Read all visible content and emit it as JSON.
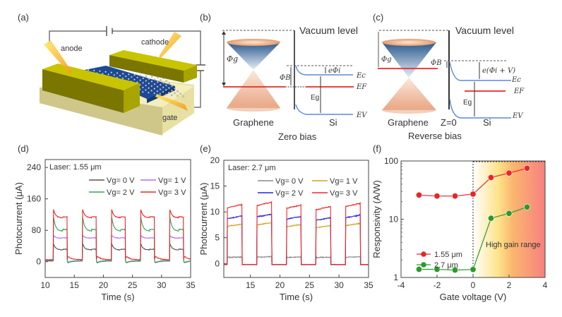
{
  "panels": {
    "a": {
      "label": "(a)",
      "annotations": [
        "anode",
        "cathode",
        "gate"
      ]
    },
    "b": {
      "label": "(b)",
      "vacuum": "Vacuum level",
      "phi_g": "Φg",
      "phi_b": "ΦB",
      "e_phi": "eΦi",
      "ec": "Ec",
      "ef": "EF",
      "ev": "EV",
      "eg": "Eg",
      "graphene": "Graphene",
      "si": "Si",
      "caption": "Zero bias"
    },
    "c": {
      "label": "(c)",
      "vacuum": "Vacuum level",
      "phi_g": "Φg",
      "phi_b": "ΦB",
      "e_phi": "e(Φi + V)",
      "ec": "Ec",
      "ef": "EF",
      "ev": "EV",
      "eg": "Eg",
      "graphene": "Graphene",
      "z0": "Z=0",
      "si": "Si",
      "caption": "Reverse bias"
    },
    "d": {
      "label": "(d)"
    },
    "e": {
      "label": "(e)"
    },
    "f": {
      "label": "(f)",
      "shade_label": "High gain range"
    }
  },
  "colors": {
    "vg0_d": "#555555",
    "vg1_d": "#b76ee8",
    "vg2_d": "#2ea55a",
    "vg3_d": "#e8262a",
    "vg0_e": "#888888",
    "vg1_e": "#d4a020",
    "vg2_e": "#2323e0",
    "vg3_e": "#ee2a2a",
    "red_series": "#e8262a",
    "green_series": "#2a9a2a"
  },
  "chart_data": [
    {
      "type": "line",
      "id": "d",
      "annotation": "Laser: 1.55 μm",
      "xlabel": "Time (s)",
      "ylabel": "Photocurrent (μA)",
      "xlim": [
        10,
        35
      ],
      "ylim": [
        -40,
        260
      ],
      "xticks": [
        10,
        15,
        20,
        25,
        30,
        35
      ],
      "yticks": [
        0,
        80,
        160,
        240
      ],
      "legend_position": "top-right",
      "pulse_on": [
        11.4,
        16.4,
        21.4,
        26.4,
        31.4
      ],
      "pulse_off": [
        13.8,
        18.8,
        23.8,
        28.8,
        33.8
      ],
      "series": [
        {
          "name": "Vg= 0 V",
          "color_key": "vg0_d",
          "peak": 48,
          "plateau": 30,
          "baseline": 2,
          "undershoot": -5
        },
        {
          "name": "Vg= 1 V",
          "color_key": "vg1_d",
          "peak": 68,
          "plateau": 60,
          "baseline": 2,
          "undershoot": -6
        },
        {
          "name": "Vg= 2 V",
          "color_key": "vg2_d",
          "peak": 118,
          "plateau": 78,
          "baseline": 3,
          "undershoot": -8
        },
        {
          "name": "Vg= 3 V",
          "color_key": "vg3_d",
          "peak": 135,
          "plateau": 112,
          "baseline": 5,
          "undershoot": 12
        }
      ]
    },
    {
      "type": "line",
      "id": "e",
      "annotation": "Laser: 2.7 μm",
      "xlabel": "Time (s)",
      "ylabel": "Photocurrent (μA)",
      "xlim": [
        10.5,
        35
      ],
      "ylim": [
        -2.7,
        20
      ],
      "xticks": [
        15,
        20,
        25,
        30,
        35
      ],
      "yticks": [
        0,
        5,
        10,
        15,
        20
      ],
      "legend_position": "top-right",
      "pulse_on": [
        11.1,
        16.1,
        21.1,
        26.1,
        31.1
      ],
      "pulse_off": [
        13.6,
        18.6,
        23.6,
        28.6,
        33.6
      ],
      "series": [
        {
          "name": "Vg= 0 V",
          "color_key": "vg0_e",
          "plateau": 1.2,
          "baseline": -0.2
        },
        {
          "name": "Vg= 1 V",
          "color_key": "vg1_e",
          "plateau": 7.2,
          "baseline": -0.2
        },
        {
          "name": "Vg= 2 V",
          "color_key": "vg2_e",
          "plateau": 8.7,
          "baseline": -0.2
        },
        {
          "name": "Vg= 3 V",
          "color_key": "vg3_e",
          "plateau": 10.8,
          "baseline": -0.2
        }
      ]
    },
    {
      "type": "line",
      "id": "f",
      "xlabel": "Gate voltage (V)",
      "ylabel": "Responsivity (A/W)",
      "xlim": [
        -4,
        4
      ],
      "ylim": [
        1,
        100
      ],
      "yscale": "log",
      "xticks": [
        -4,
        -2,
        0,
        2,
        4
      ],
      "yticks": [
        1,
        10,
        100
      ],
      "legend_position": "bottom-left",
      "x": [
        -3,
        -2,
        -1,
        0,
        1,
        2,
        3
      ],
      "series": [
        {
          "name": "1.55 μm",
          "color_key": "red_series",
          "values": [
            26,
            25,
            25,
            27,
            52,
            62,
            75
          ]
        },
        {
          "name": "2.7 μm",
          "color_key": "green_series",
          "values": [
            1.38,
            1.38,
            1.34,
            1.37,
            10.4,
            12.6,
            16.2
          ]
        }
      ],
      "shaded_region": {
        "x": [
          0,
          4
        ],
        "label": "High gain range"
      }
    }
  ]
}
